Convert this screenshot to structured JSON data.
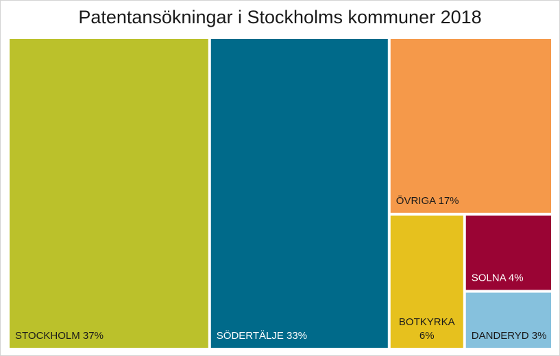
{
  "chart_data": {
    "type": "treemap",
    "title": "Patentansökningar i Stockholms kommuner 2018",
    "unit": "%",
    "items": [
      {
        "label": "STOCKHOLM 37%",
        "name": "STOCKHOLM",
        "value": 37,
        "color": "#bbc12b",
        "text_color": "#1a1a1a"
      },
      {
        "label": "SÖDERTÄLJE 33%",
        "name": "SÖDERTÄLJE",
        "value": 33,
        "color": "#006a8a",
        "text_color": "#ffffff"
      },
      {
        "label": "ÖVRIGA 17%",
        "name": "ÖVRIGA",
        "value": 17,
        "color": "#f5994a",
        "text_color": "#1a1a1a"
      },
      {
        "label": "BOTKYRKA\n6%",
        "name": "BOTKYRKA",
        "value": 6,
        "color": "#e6c11e",
        "text_color": "#1a1a1a"
      },
      {
        "label": "SOLNA 4%",
        "name": "SOLNA",
        "value": 4,
        "color": "#9a0434",
        "text_color": "#ffffff"
      },
      {
        "label": "DANDERYD 3%",
        "name": "DANDERYD",
        "value": 3,
        "color": "#86c1dd",
        "text_color": "#1a1a1a"
      }
    ]
  }
}
